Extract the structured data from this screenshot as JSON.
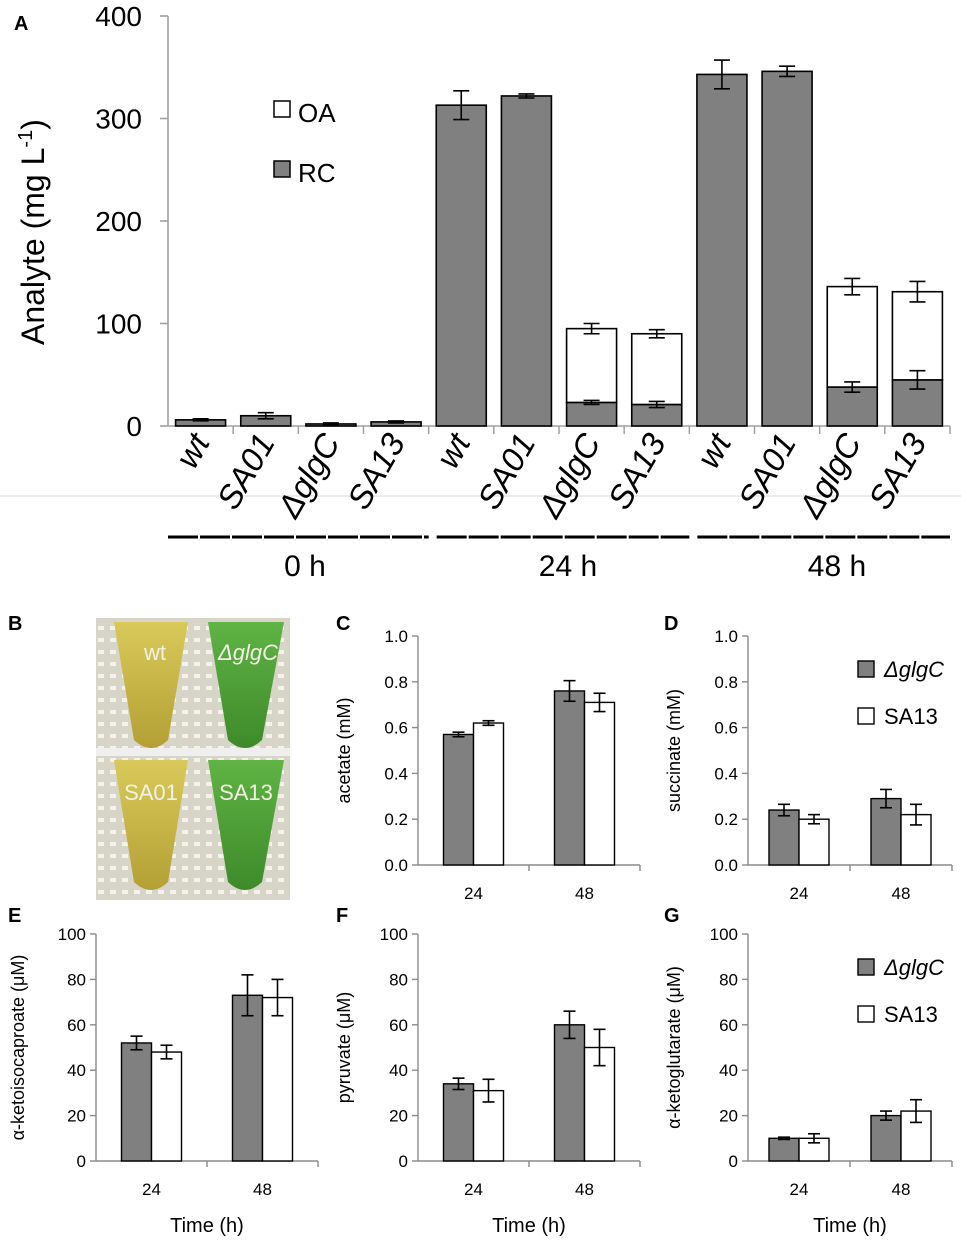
{
  "colors": {
    "gray_bar": "#808080",
    "white_bar": "#ffffff",
    "axis": "#000000",
    "photo_yellow": "#cbb84a",
    "photo_green": "#56a83a"
  },
  "panel_letters": {
    "A": "A",
    "B": "B",
    "C": "C",
    "D": "D",
    "E": "E",
    "F": "F",
    "G": "G"
  },
  "chart_data": [
    {
      "id": "A",
      "type": "bar",
      "stacked": true,
      "title": "",
      "ylabel": "Analyte (mg L",
      "ylabel_sup": "-1",
      "ylabel_close": ")",
      "ylim": [
        0,
        400
      ],
      "yticks": [
        "0",
        "100",
        "200",
        "300",
        "400"
      ],
      "categories": [
        "wt",
        "SA01",
        "ΔglgC",
        "SA13",
        "wt",
        "SA01",
        "ΔglgC",
        "SA13",
        "wt",
        "SA01",
        "ΔglgC",
        "SA13"
      ],
      "groups": [
        "0 h",
        "24 h",
        "48 h"
      ],
      "legend": [
        "OA",
        "RC"
      ],
      "series": [
        {
          "name": "RC",
          "color": "gray",
          "values": [
            6,
            10,
            2,
            4,
            313,
            322,
            23,
            21,
            343,
            346,
            38,
            45
          ],
          "errors": [
            1,
            3,
            1,
            1,
            14,
            2,
            2,
            3,
            14,
            5,
            5,
            9
          ]
        },
        {
          "name": "OA",
          "color": "white",
          "values": [
            0,
            0,
            0,
            0,
            0,
            0,
            72,
            69,
            0,
            0,
            98,
            86
          ],
          "errors": [
            0,
            0,
            0,
            0,
            0,
            0,
            5,
            4,
            0,
            0,
            8,
            10
          ]
        }
      ]
    },
    {
      "id": "C",
      "type": "bar",
      "ylabel": "acetate (mM)",
      "xlabel": "",
      "ylim": [
        0,
        1.0
      ],
      "yticks": [
        "0.0",
        "0.2",
        "0.4",
        "0.6",
        "0.8",
        "1.0"
      ],
      "categories": [
        "24",
        "48"
      ],
      "series": [
        {
          "name": "ΔglgC",
          "color": "gray",
          "values": [
            0.57,
            0.76
          ],
          "errors": [
            0.01,
            0.045
          ]
        },
        {
          "name": "SA13",
          "color": "white",
          "values": [
            0.62,
            0.71
          ],
          "errors": [
            0.01,
            0.04
          ]
        }
      ]
    },
    {
      "id": "D",
      "type": "bar",
      "ylabel": "succinate (mM)",
      "xlabel": "",
      "ylim": [
        0,
        1.0
      ],
      "yticks": [
        "0.0",
        "0.2",
        "0.4",
        "0.6",
        "0.8",
        "1.0"
      ],
      "categories": [
        "24",
        "48"
      ],
      "legend": [
        "ΔglgC",
        "SA13"
      ],
      "series": [
        {
          "name": "ΔglgC",
          "color": "gray",
          "values": [
            0.24,
            0.29
          ],
          "errors": [
            0.025,
            0.04
          ]
        },
        {
          "name": "SA13",
          "color": "white",
          "values": [
            0.2,
            0.22
          ],
          "errors": [
            0.02,
            0.045
          ]
        }
      ]
    },
    {
      "id": "E",
      "type": "bar",
      "ylabel": "α-ketoisocaproate (μM)",
      "xlabel": "Time (h)",
      "ylim": [
        0,
        100
      ],
      "yticks": [
        "0",
        "20",
        "40",
        "60",
        "80",
        "100"
      ],
      "categories": [
        "24",
        "48"
      ],
      "series": [
        {
          "name": "ΔglgC",
          "color": "gray",
          "values": [
            52,
            73
          ],
          "errors": [
            3,
            9
          ]
        },
        {
          "name": "SA13",
          "color": "white",
          "values": [
            48,
            72
          ],
          "errors": [
            3,
            8
          ]
        }
      ]
    },
    {
      "id": "F",
      "type": "bar",
      "ylabel": "pyruvate (μM)",
      "xlabel": "Time (h)",
      "ylim": [
        0,
        100
      ],
      "yticks": [
        "0",
        "20",
        "40",
        "60",
        "80",
        "100"
      ],
      "categories": [
        "24",
        "48"
      ],
      "series": [
        {
          "name": "ΔglgC",
          "color": "gray",
          "values": [
            34,
            60
          ],
          "errors": [
            2.5,
            6
          ]
        },
        {
          "name": "SA13",
          "color": "white",
          "values": [
            31,
            50
          ],
          "errors": [
            5,
            8
          ]
        }
      ]
    },
    {
      "id": "G",
      "type": "bar",
      "ylabel": "α-ketoglutarate (μM)",
      "xlabel": "Time (h)",
      "ylim": [
        0,
        100
      ],
      "yticks": [
        "0",
        "20",
        "40",
        "60",
        "80",
        "100"
      ],
      "categories": [
        "24",
        "48"
      ],
      "legend": [
        "ΔglgC",
        "SA13"
      ],
      "series": [
        {
          "name": "ΔglgC",
          "color": "gray",
          "values": [
            10,
            20
          ],
          "errors": [
            0.5,
            2
          ]
        },
        {
          "name": "SA13",
          "color": "white",
          "values": [
            10,
            22
          ],
          "errors": [
            2,
            5
          ]
        }
      ]
    }
  ],
  "photo_B": {
    "labels": [
      "wt",
      "ΔglgC",
      "SA01",
      "SA13"
    ]
  }
}
